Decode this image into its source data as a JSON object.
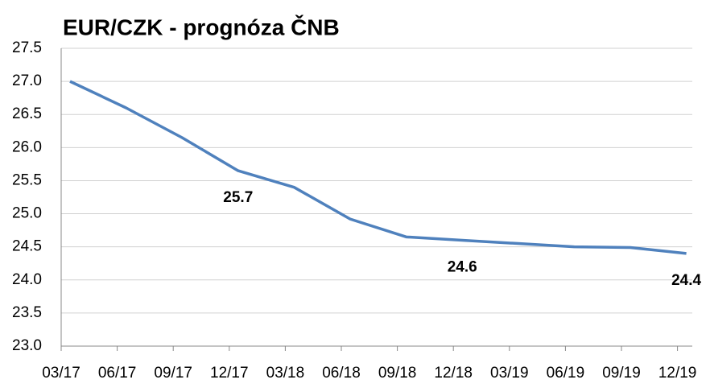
{
  "chart_data": {
    "type": "line",
    "title": "EUR/CZK - prognóza ČNB",
    "categories": [
      "03/17",
      "06/17",
      "09/17",
      "12/17",
      "03/18",
      "06/18",
      "09/18",
      "12/18",
      "03/19",
      "06/19",
      "09/19",
      "12/19"
    ],
    "series": [
      {
        "name": "EUR/CZK",
        "color": "#4f81bd",
        "values": [
          27.0,
          26.6,
          26.15,
          25.65,
          25.4,
          24.92,
          24.65,
          24.6,
          24.55,
          24.5,
          24.49,
          24.4
        ],
        "value_labels": [
          null,
          null,
          null,
          "25.7",
          null,
          null,
          null,
          "24.6",
          null,
          null,
          null,
          "24.4"
        ]
      }
    ],
    "ylim": [
      23.0,
      27.5
    ],
    "yticks": [
      {
        "value": 23,
        "label": "23.0"
      },
      23.5,
      {
        "value": 24,
        "label": "24.0"
      },
      24.5,
      {
        "value": 25,
        "label": "25.0"
      },
      25.5,
      {
        "value": 26,
        "label": "26.0"
      },
      26.5,
      {
        "value": 27,
        "label": "27.0"
      },
      27.5
    ],
    "grid": true
  }
}
